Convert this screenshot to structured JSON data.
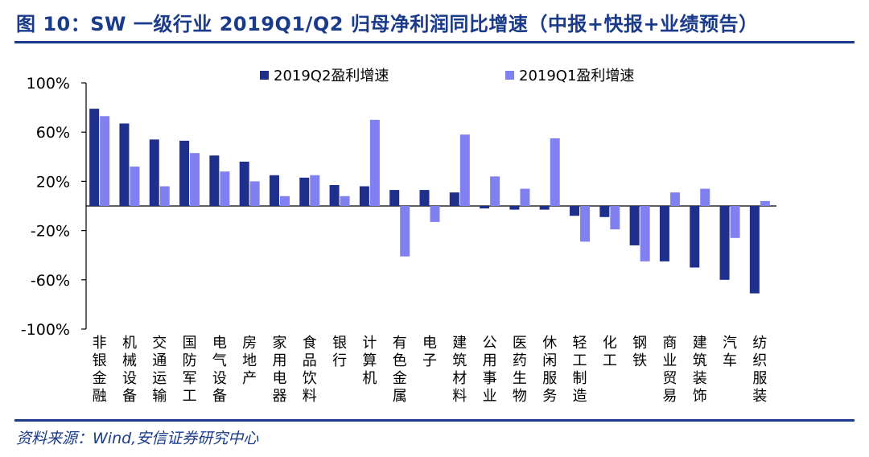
{
  "header": {
    "title": "图 10：SW 一级行业 2019Q1/Q2 归母净利润同比增速（中报+快报+业绩预告）"
  },
  "footer": {
    "source": "资料来源：Wind,安信证券研究中心"
  },
  "colors": {
    "brand": "#1a3a8a",
    "q2": "#1f2f8c",
    "q1": "#8080f0",
    "axis": "#000000"
  },
  "chart_data": {
    "type": "bar",
    "categories": [
      "非银金融",
      "机械设备",
      "交通运输",
      "国防军工",
      "电气设备",
      "房地产",
      "家用电器",
      "食品饮料",
      "银行",
      "计算机",
      "有色金属",
      "电子",
      "建筑材料",
      "公用事业",
      "医药生物",
      "休闲服务",
      "轻工制造",
      "化工",
      "钢铁",
      "商业贸易",
      "建筑装饰",
      "汽车",
      "纺织服装"
    ],
    "series": [
      {
        "name": "2019Q2盈利增速",
        "values": [
          79,
          67,
          54,
          53,
          41,
          36,
          25,
          23,
          17,
          16,
          13,
          13,
          11,
          -2,
          -3,
          -3,
          -8,
          -9,
          -32,
          -45,
          -50,
          -60,
          -71
        ]
      },
      {
        "name": "2019Q1盈利增速",
        "values": [
          73,
          32,
          16,
          43,
          28,
          20,
          8,
          25,
          8,
          70,
          -41,
          -13,
          58,
          24,
          14,
          55,
          -29,
          -19,
          -45,
          11,
          14,
          -26,
          4
        ]
      }
    ],
    "y_ticks": [
      "100%",
      "60%",
      "20%",
      "-20%",
      "-60%",
      "-100%"
    ],
    "ylim": [
      -100,
      100
    ],
    "legend_position": "top",
    "grid": false
  }
}
